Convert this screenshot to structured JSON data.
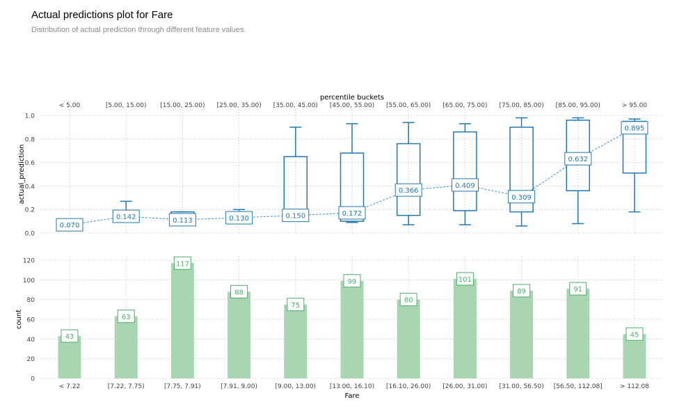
{
  "header": {
    "title": "Actual predictions plot for Fare",
    "subtitle": "Distribution of actual prediction through different feature values."
  },
  "colors": {
    "box": "#1f77b4",
    "line": "#3a8fcb",
    "bar": "#a8d6b0",
    "bar_label": "#4bae6b",
    "grid": "#d0d0d0",
    "axis_text": "#404040"
  },
  "chart_data": [
    {
      "type": "box",
      "top_axis_label": "percentile buckets",
      "percentile_buckets": [
        "< 5.00",
        "[5.00, 15.00)",
        "[15.00, 25.00)",
        "[25.00, 35.00)",
        "[35.00, 45.00)",
        "[45.00, 55.00)",
        "[55.00, 65.00)",
        "[65.00, 75.00)",
        "[75.00, 85.00)",
        "[85.00, 95.00)",
        "> 95.00"
      ],
      "ylabel": "actual_prediction",
      "ylim": [
        0,
        1.0
      ],
      "yticks": [
        "0.0",
        "0.2",
        "0.4",
        "0.6",
        "0.8",
        "1.0"
      ],
      "boxes": [
        {
          "whislo": 0.09,
          "q1": 0.1,
          "q3": 0.11,
          "whishi": 0.12
        },
        {
          "whislo": 0.14,
          "q1": 0.15,
          "q3": 0.19,
          "whishi": 0.27
        },
        {
          "whislo": 0.1,
          "q1": 0.11,
          "q3": 0.18,
          "whishi": 0.18
        },
        {
          "whislo": 0.11,
          "q1": 0.12,
          "q3": 0.17,
          "whishi": 0.2
        },
        {
          "whislo": 0.11,
          "q1": 0.12,
          "q3": 0.65,
          "whishi": 0.9
        },
        {
          "whislo": 0.09,
          "q1": 0.1,
          "q3": 0.68,
          "whishi": 0.93
        },
        {
          "whislo": 0.07,
          "q1": 0.15,
          "q3": 0.76,
          "whishi": 0.94
        },
        {
          "whislo": 0.07,
          "q1": 0.19,
          "q3": 0.86,
          "whishi": 0.93
        },
        {
          "whislo": 0.06,
          "q1": 0.18,
          "q3": 0.9,
          "whishi": 0.98
        },
        {
          "whislo": 0.08,
          "q1": 0.36,
          "q3": 0.96,
          "whishi": 0.98
        },
        {
          "whislo": 0.18,
          "q1": 0.51,
          "q3": 0.95,
          "whishi": 0.97
        }
      ],
      "mean_values": [
        0.07,
        0.142,
        0.113,
        0.13,
        0.15,
        0.172,
        0.366,
        0.409,
        0.309,
        0.632,
        0.895
      ],
      "mean_labels": [
        "0.070",
        "0.142",
        "0.113",
        "0.130",
        "0.150",
        "0.172",
        "0.366",
        "0.409",
        "0.309",
        "0.632",
        "0.895"
      ]
    },
    {
      "type": "bar",
      "categories": [
        "< 7.22",
        "[7.22, 7.75)",
        "[7.75, 7.91)",
        "[7.91, 9.00)",
        "[9.00, 13.00)",
        "[13.00, 16.10)",
        "[16.10, 26.00)",
        "[26.00, 31.00)",
        "[31.00, 56.50)",
        "[56.50, 112.08]",
        "> 112.08"
      ],
      "values": [
        43,
        63,
        117,
        88,
        75,
        99,
        80,
        101,
        89,
        91,
        45
      ],
      "xlabel": "Fare",
      "ylabel": "count",
      "ylim": [
        0,
        125
      ],
      "yticks": [
        "0",
        "20",
        "40",
        "60",
        "80",
        "100",
        "120"
      ]
    }
  ]
}
